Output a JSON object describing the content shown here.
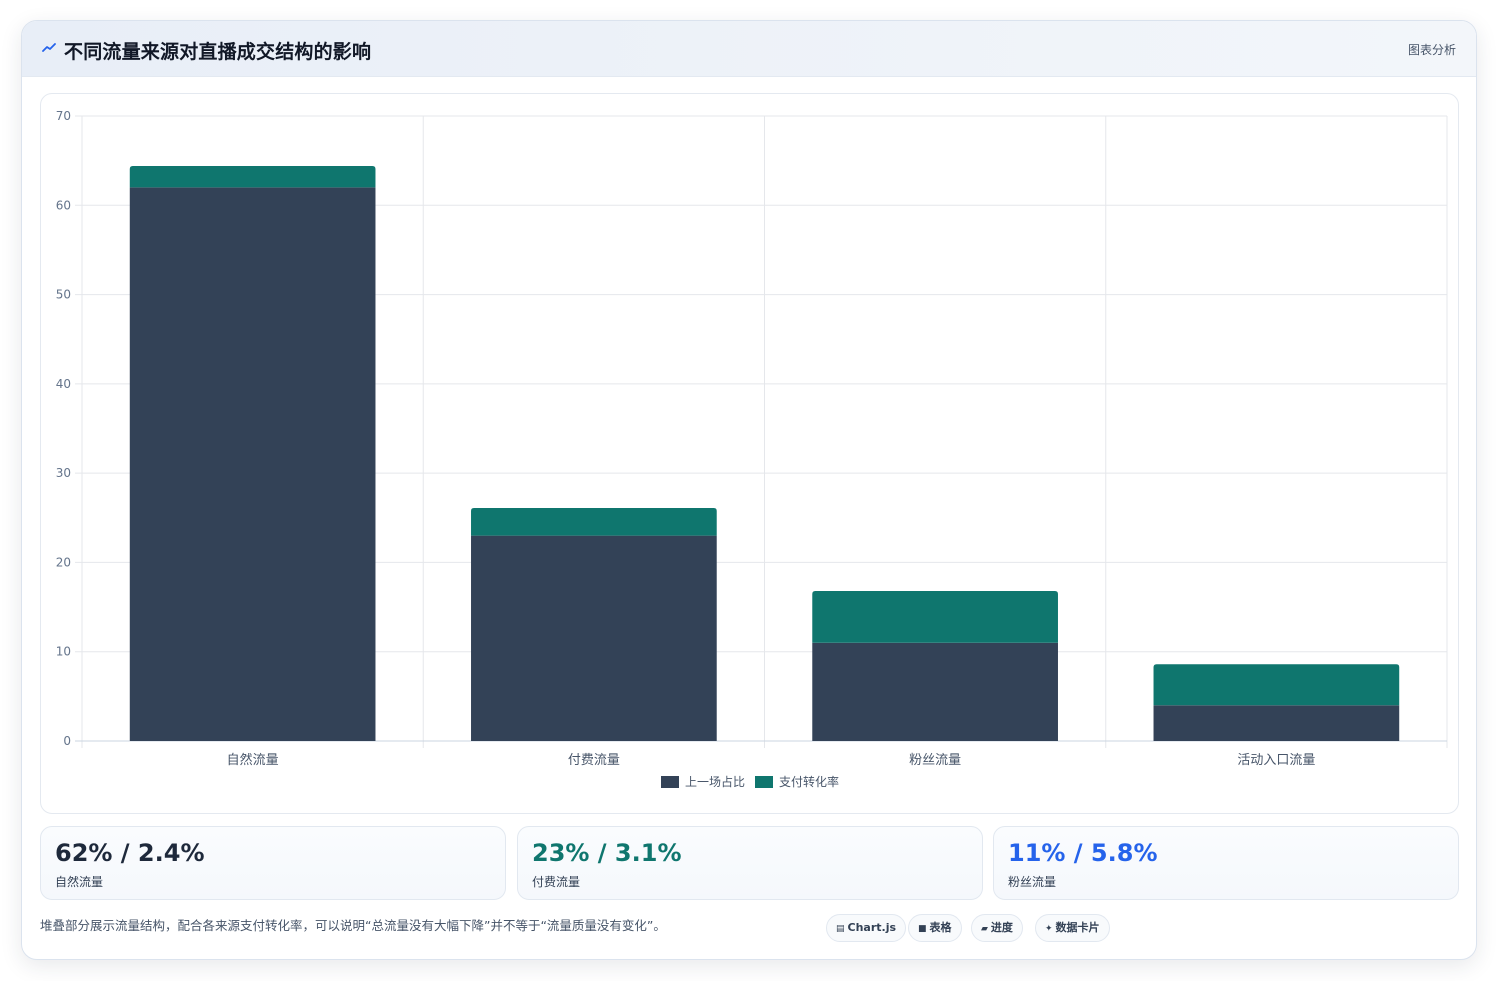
{
  "header": {
    "title": "不同流量来源对直播成交结构的影响",
    "tag": "图表分析",
    "icon": "trend-line-icon"
  },
  "chart_data": {
    "type": "bar",
    "stacked": true,
    "title": "",
    "xlabel": "",
    "ylabel": "",
    "categories": [
      "自然流量",
      "付费流量",
      "粉丝流量",
      "活动入口流量"
    ],
    "series": [
      {
        "name": "上一场占比",
        "values": [
          62,
          23,
          11,
          4
        ],
        "color": "#334257"
      },
      {
        "name": "支付转化率",
        "values": [
          2.4,
          3.1,
          5.8,
          4.6
        ],
        "color": "#0f766e"
      }
    ],
    "ylim": [
      0,
      70
    ],
    "yticks": [
      0,
      10,
      20,
      30,
      40,
      50,
      60,
      70
    ],
    "grid": true,
    "legend": "bottom"
  },
  "stats": [
    {
      "value": "62% / 2.4%",
      "label": "自然流量",
      "color": "#1e293b"
    },
    {
      "value": "23% / 3.1%",
      "label": "付费流量",
      "color": "#0f766e"
    },
    {
      "value": "11% / 5.8%",
      "label": "粉丝流量",
      "color": "#2563eb"
    }
  ],
  "footnote": "堆叠部分展示流量结构，配合各来源支付转化率，可以说明“总流量没有大幅下降”并不等于“流量质量没有变化”。",
  "pills": [
    {
      "icon": "chart-icon",
      "glyph": "▤",
      "label": "Chart.js"
    },
    {
      "icon": "table-icon",
      "glyph": "■",
      "label": "表格"
    },
    {
      "icon": "progress-icon",
      "glyph": "▰",
      "label": "进度"
    },
    {
      "icon": "sparkle-icon",
      "glyph": "✦",
      "label": "数据卡片"
    }
  ]
}
